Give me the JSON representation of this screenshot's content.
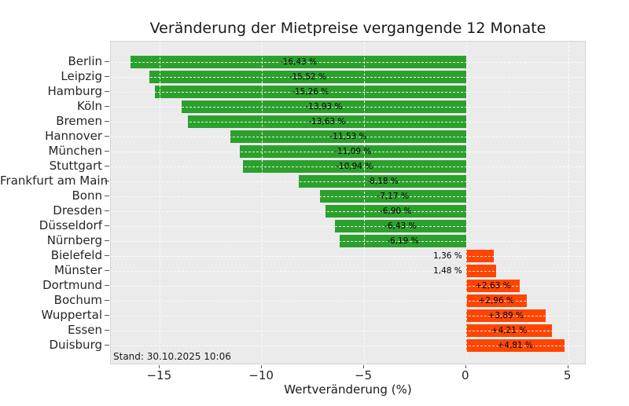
{
  "chart_data": {
    "type": "bar",
    "orientation": "horizontal",
    "title": "Veränderung der Mietpreise vergangende 12 Monate",
    "xlabel": "Wertveränderung (%)",
    "annotation": "Stand: 30.10.2025 10:06",
    "categories": [
      "Berlin",
      "Leipzig",
      "Hamburg",
      "Köln",
      "Bremen",
      "Hannover",
      "München",
      "Stuttgart",
      "Frankfurt am Main",
      "Bonn",
      "Dresden",
      "Düsseldorf",
      "Nürnberg",
      "Bielefeld",
      "Münster",
      "Dortmund",
      "Bochum",
      "Wuppertal",
      "Essen",
      "Duisburg"
    ],
    "values": [
      -16.43,
      -15.52,
      -15.26,
      -13.93,
      -13.63,
      -11.53,
      -11.09,
      -10.94,
      -8.18,
      -7.17,
      -6.9,
      -6.43,
      -6.19,
      1.36,
      1.48,
      2.63,
      2.96,
      3.89,
      4.21,
      4.81
    ],
    "bar_labels": [
      "-16,43 %",
      "-15,52 %",
      "-15,26 %",
      "-13,93 %",
      "-13,63 %",
      "-11,53 %",
      "-11,09 %",
      "-10,94 %",
      "-8,18 %",
      "-7,17 %",
      "-6,90 %",
      "-6,43 %",
      "-6,19 %",
      "1,36 %",
      "1,48 %",
      "+2,63 %",
      "+2,96 %",
      "+3,89 %",
      "+4,21 %",
      "+4,81 %"
    ],
    "label_placement": [
      "inside",
      "inside",
      "inside",
      "inside",
      "inside",
      "inside",
      "inside",
      "inside",
      "inside",
      "inside",
      "inside",
      "inside",
      "inside",
      "outside-left",
      "outside-left",
      "inside",
      "inside",
      "inside",
      "inside",
      "inside"
    ],
    "xticks": [
      -15,
      -10,
      -5,
      0,
      5
    ],
    "xtick_labels": [
      "−15",
      "−10",
      "−5",
      "0",
      "5"
    ],
    "xlim": [
      -17.4,
      5.9
    ],
    "grid": {
      "color": "#ffffff",
      "style": "dashed",
      "above_bars": true
    },
    "colors": {
      "negative_bar": "#2ca02c",
      "positive_bar": "#ff4500",
      "plot_background": "#ebebeb",
      "figure_background": "#ffffff",
      "tick_color": "#555555",
      "text_color": "#262626"
    }
  }
}
